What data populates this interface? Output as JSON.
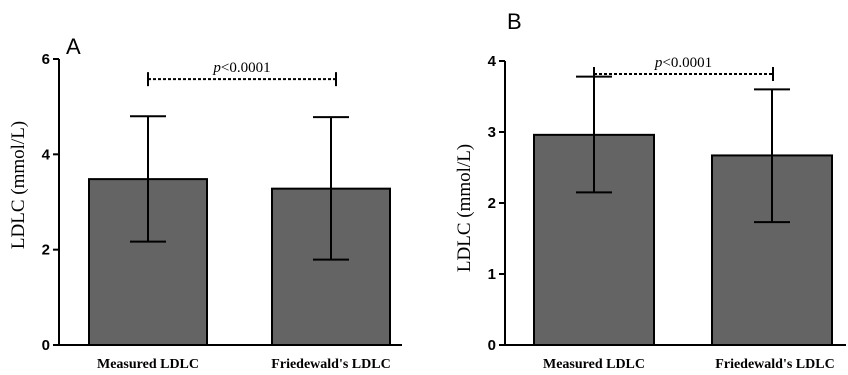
{
  "chart_data": [
    {
      "panel": "A",
      "type": "bar",
      "categories": [
        "Measured LDLC",
        "Friedewald's LDLC"
      ],
      "values": [
        3.48,
        3.28
      ],
      "error_bars": [
        {
          "lower": 2.17,
          "upper": 4.8
        },
        {
          "lower": 1.79,
          "upper": 4.78
        }
      ],
      "ylabel": "LDLC (mmol/L)",
      "ylim": [
        0,
        6
      ],
      "yticks": [
        "0",
        "2",
        "4",
        "6"
      ],
      "annotation": {
        "prefix": "p",
        "suffix": "<0.0001",
        "level": 5.85
      },
      "bar_color": "#646464"
    },
    {
      "panel": "B",
      "type": "bar",
      "categories": [
        "Measured LDLC",
        "Friedewald's LDLC"
      ],
      "values": [
        2.96,
        2.67
      ],
      "error_bars": [
        {
          "lower": 2.15,
          "upper": 3.78
        },
        {
          "lower": 1.73,
          "upper": 3.6
        }
      ],
      "ylabel": "LDLC (mmol/L)",
      "ylim": [
        0,
        4
      ],
      "yticks": [
        "0",
        "1",
        "2",
        "3",
        "4"
      ],
      "annotation": {
        "prefix": "p",
        "suffix": "<0.0001",
        "level": 4.0
      },
      "bar_color": "#646464"
    }
  ]
}
